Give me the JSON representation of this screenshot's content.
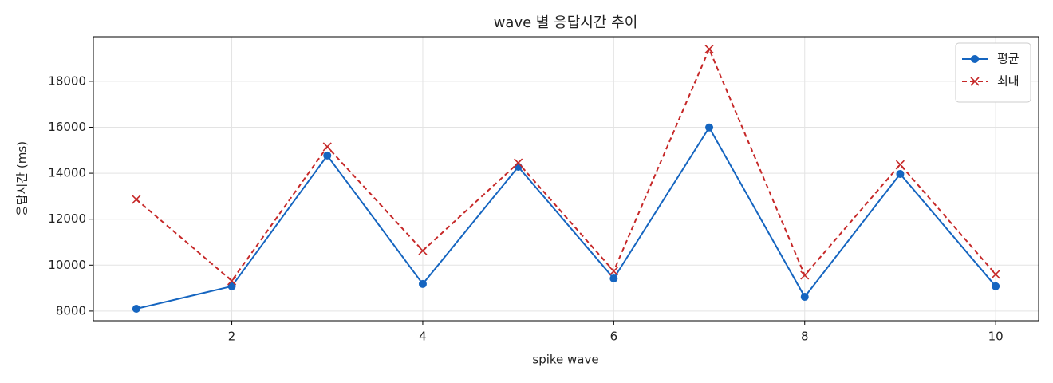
{
  "chart_data": {
    "type": "line",
    "title": "wave 별 응답시간 추이",
    "x_label": "spike wave",
    "y_label": "응답시간 (ms)",
    "x": [
      1,
      2,
      3,
      4,
      5,
      6,
      7,
      8,
      9,
      10
    ],
    "series": [
      {
        "name": "평균",
        "color": "#1565c0",
        "marker": "circle",
        "dash": "solid",
        "values": [
          8100,
          9080,
          14770,
          9180,
          14280,
          9420,
          15990,
          8620,
          13970,
          9080
        ]
      },
      {
        "name": "최대",
        "color": "#c62828",
        "marker": "x",
        "dash": "dashed",
        "values": [
          12860,
          9320,
          15150,
          10630,
          14450,
          9740,
          19400,
          9560,
          14380,
          9600
        ]
      }
    ],
    "xlim": [
      0.55,
      10.45
    ],
    "ylim": [
      7580,
      19940
    ],
    "xticks": [
      2,
      4,
      6,
      8,
      10
    ],
    "yticks": [
      8000,
      10000,
      12000,
      14000,
      16000,
      18000
    ],
    "grid": true,
    "legend": "upper right"
  }
}
